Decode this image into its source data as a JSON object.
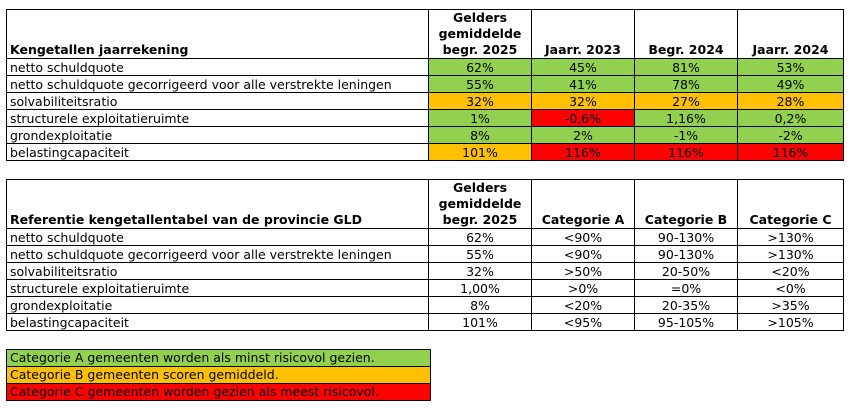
{
  "table1": {
    "header_label": "Kengetallen jaarrekening",
    "col_headers": [
      "Gelders\ngemiddelde\nbegr. 2025",
      "Jaarr. 2023",
      "Begr. 2024",
      "Jaarr. 2024"
    ],
    "rows": [
      {
        "label": "netto schuldquote",
        "values": [
          "62%",
          "45%",
          "81%",
          "53%"
        ],
        "colors": [
          "green",
          "green",
          "green",
          "green"
        ]
      },
      {
        "label": "netto schuldquote gecorrigeerd voor alle verstrekte leningen",
        "values": [
          "55%",
          "41%",
          "78%",
          "49%"
        ],
        "colors": [
          "green",
          "green",
          "green",
          "green"
        ]
      },
      {
        "label": "solvabiliteitsratio",
        "values": [
          "32%",
          "32%",
          "27%",
          "28%"
        ],
        "colors": [
          "orange",
          "orange",
          "orange",
          "orange"
        ]
      },
      {
        "label": "structurele exploitatieruimte",
        "values": [
          "1%",
          "-0,6%",
          "1,16%",
          "0,2%"
        ],
        "colors": [
          "green",
          "red",
          "green",
          "green"
        ]
      },
      {
        "label": "grondexploitatie",
        "values": [
          "8%",
          "2%",
          "-1%",
          "-2%"
        ],
        "colors": [
          "green",
          "green",
          "green",
          "green"
        ]
      },
      {
        "label": "belastingcapaciteit",
        "values": [
          "101%",
          "116%",
          "116%",
          "116%"
        ],
        "colors": [
          "orange",
          "red",
          "red",
          "red"
        ]
      }
    ]
  },
  "table2": {
    "header_label": "Referentie kengetallentabel van de provincie GLD",
    "col_headers": [
      "Gelders\ngemiddelde\nbegr. 2025",
      "Categorie A",
      "Categorie B",
      "Categorie C"
    ],
    "rows": [
      {
        "label": "netto schuldquote",
        "values": [
          "62%",
          "<90%",
          "90-130%",
          ">130%"
        ]
      },
      {
        "label": "netto schuldquote gecorrigeerd voor alle verstrekte leningen",
        "values": [
          "55%",
          "<90%",
          "90-130%",
          ">130%"
        ]
      },
      {
        "label": "solvabiliteitsratio",
        "values": [
          "32%",
          ">50%",
          "20-50%",
          "<20%"
        ]
      },
      {
        "label": "structurele exploitatieruimte",
        "values": [
          "1,00%",
          ">0%",
          "=0%",
          "<0%"
        ]
      },
      {
        "label": "grondexploitatie",
        "values": [
          "8%",
          "<20%",
          "20-35%",
          ">35%"
        ]
      },
      {
        "label": "belastingcapaciteit",
        "values": [
          "101%",
          "<95%",
          "95-105%",
          ">105%"
        ]
      }
    ]
  },
  "legend": [
    {
      "text": "Categorie A gemeenten worden als minst risicovol gezien.",
      "color": "green"
    },
    {
      "text": "Categorie B gemeenten scoren gemiddeld.",
      "color": "orange"
    },
    {
      "text": "Categorie C gemeenten worden gezien als meest risicovol.",
      "color": "red"
    }
  ],
  "colors": {
    "green": "#92d050",
    "orange": "#ffc000",
    "red": "#ff0000"
  }
}
